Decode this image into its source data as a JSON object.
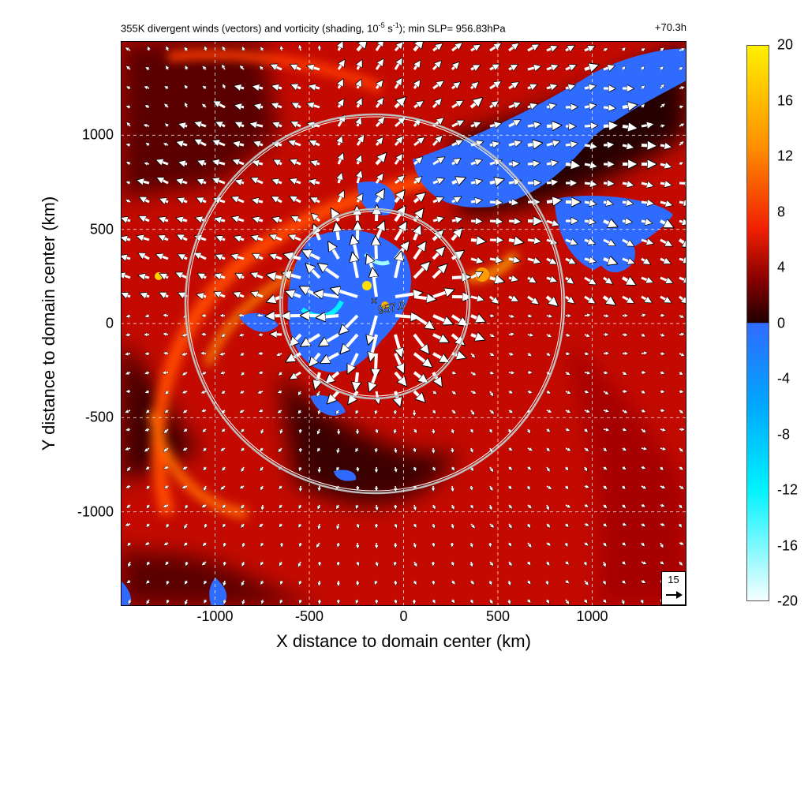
{
  "title": {
    "main_prefix": "355K divergent winds (vectors) and vorticity (shading, 10",
    "main_exp": "-5",
    "main_mid": " s",
    "main_exp2": "-1",
    "main_suffix": "); min SLP= 956.83hPa",
    "time": "+70.3h"
  },
  "reference_vector": {
    "label": "15",
    "value": 15
  },
  "center_marker": {
    "symbol": "×",
    "label": "957.0"
  },
  "colors": {
    "positive_dark": "#1a0000",
    "positive_red": "#e10000",
    "positive_orange": "#ff7a00",
    "positive_yellow": "#fff000",
    "zero": "#ffffff",
    "negative_blue": "#2f6bff",
    "negative_cyan": "#00f2ff",
    "negative_light": "#f2fdff"
  },
  "chart_data": {
    "type": "heatmap",
    "field": "vorticity",
    "vector_field": "divergent winds",
    "xlabel": "X distance to domain center (km)",
    "ylabel": "Y distance to domain center (km)",
    "xlim": [
      -1500,
      1500
    ],
    "ylim": [
      -1500,
      1500
    ],
    "xticks": [
      -1000,
      -500,
      0,
      500,
      1000
    ],
    "yticks": [
      1000,
      500,
      0,
      -500,
      -1000
    ],
    "grid": true,
    "colorbar": {
      "min": -20,
      "max": 20,
      "ticks": [
        20,
        16,
        12,
        8,
        4,
        0,
        -4,
        -8,
        -12,
        -16,
        -20
      ]
    },
    "range_rings_km": [
      500,
      1000
    ],
    "center": {
      "x": -150,
      "y": 100
    },
    "min_slp_hpa": 956.83
  }
}
